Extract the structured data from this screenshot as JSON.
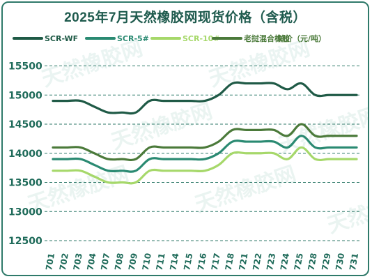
{
  "chart_data": {
    "type": "line",
    "title": "2025年7月天然橡胶网现货价格（含税）",
    "categories": [
      "701",
      "702",
      "703",
      "704",
      "707",
      "708",
      "709",
      "710",
      "711",
      "714",
      "715",
      "716",
      "717",
      "718",
      "721",
      "722",
      "723",
      "724",
      "725",
      "728",
      "729",
      "730",
      "731"
    ],
    "series": [
      {
        "name": "SCR-WF",
        "color": "#1f5a46",
        "values": [
          14900,
          14900,
          14900,
          14800,
          14700,
          14700,
          14700,
          14900,
          14900,
          14900,
          14900,
          14900,
          15000,
          15200,
          15200,
          15200,
          15200,
          15100,
          15200,
          15000,
          15000,
          15000,
          15000
        ]
      },
      {
        "name": "SCR-5#",
        "color": "#2a8a72",
        "values": [
          13900,
          13900,
          13900,
          13800,
          13700,
          13700,
          13700,
          13900,
          13900,
          13900,
          13900,
          13900,
          14000,
          14200,
          14200,
          14200,
          14200,
          14100,
          14300,
          14100,
          14100,
          14100,
          14100
        ]
      },
      {
        "name": "SCR-10#",
        "color": "#a6d86a",
        "values": [
          13700,
          13700,
          13700,
          13600,
          13500,
          13500,
          13500,
          13700,
          13700,
          13700,
          13700,
          13700,
          13800,
          14000,
          14000,
          14000,
          14000,
          13900,
          14100,
          13900,
          13900,
          13900,
          13900
        ]
      },
      {
        "name": "老挝混合橡胶",
        "color": "#4b7a3a",
        "values": [
          14100,
          14100,
          14100,
          14000,
          13900,
          13900,
          13900,
          14100,
          14100,
          14100,
          14100,
          14100,
          14200,
          14400,
          14400,
          14400,
          14400,
          14300,
          14500,
          14300,
          14300,
          14300,
          14300
        ]
      }
    ],
    "unit_label": "单价（元/吨）",
    "yticks": [
      12500,
      13000,
      13500,
      14000,
      14500,
      15000,
      15500
    ],
    "ylim": [
      12500,
      15650
    ],
    "grid": true,
    "legend": "top",
    "watermark": "天然橡胶网"
  }
}
